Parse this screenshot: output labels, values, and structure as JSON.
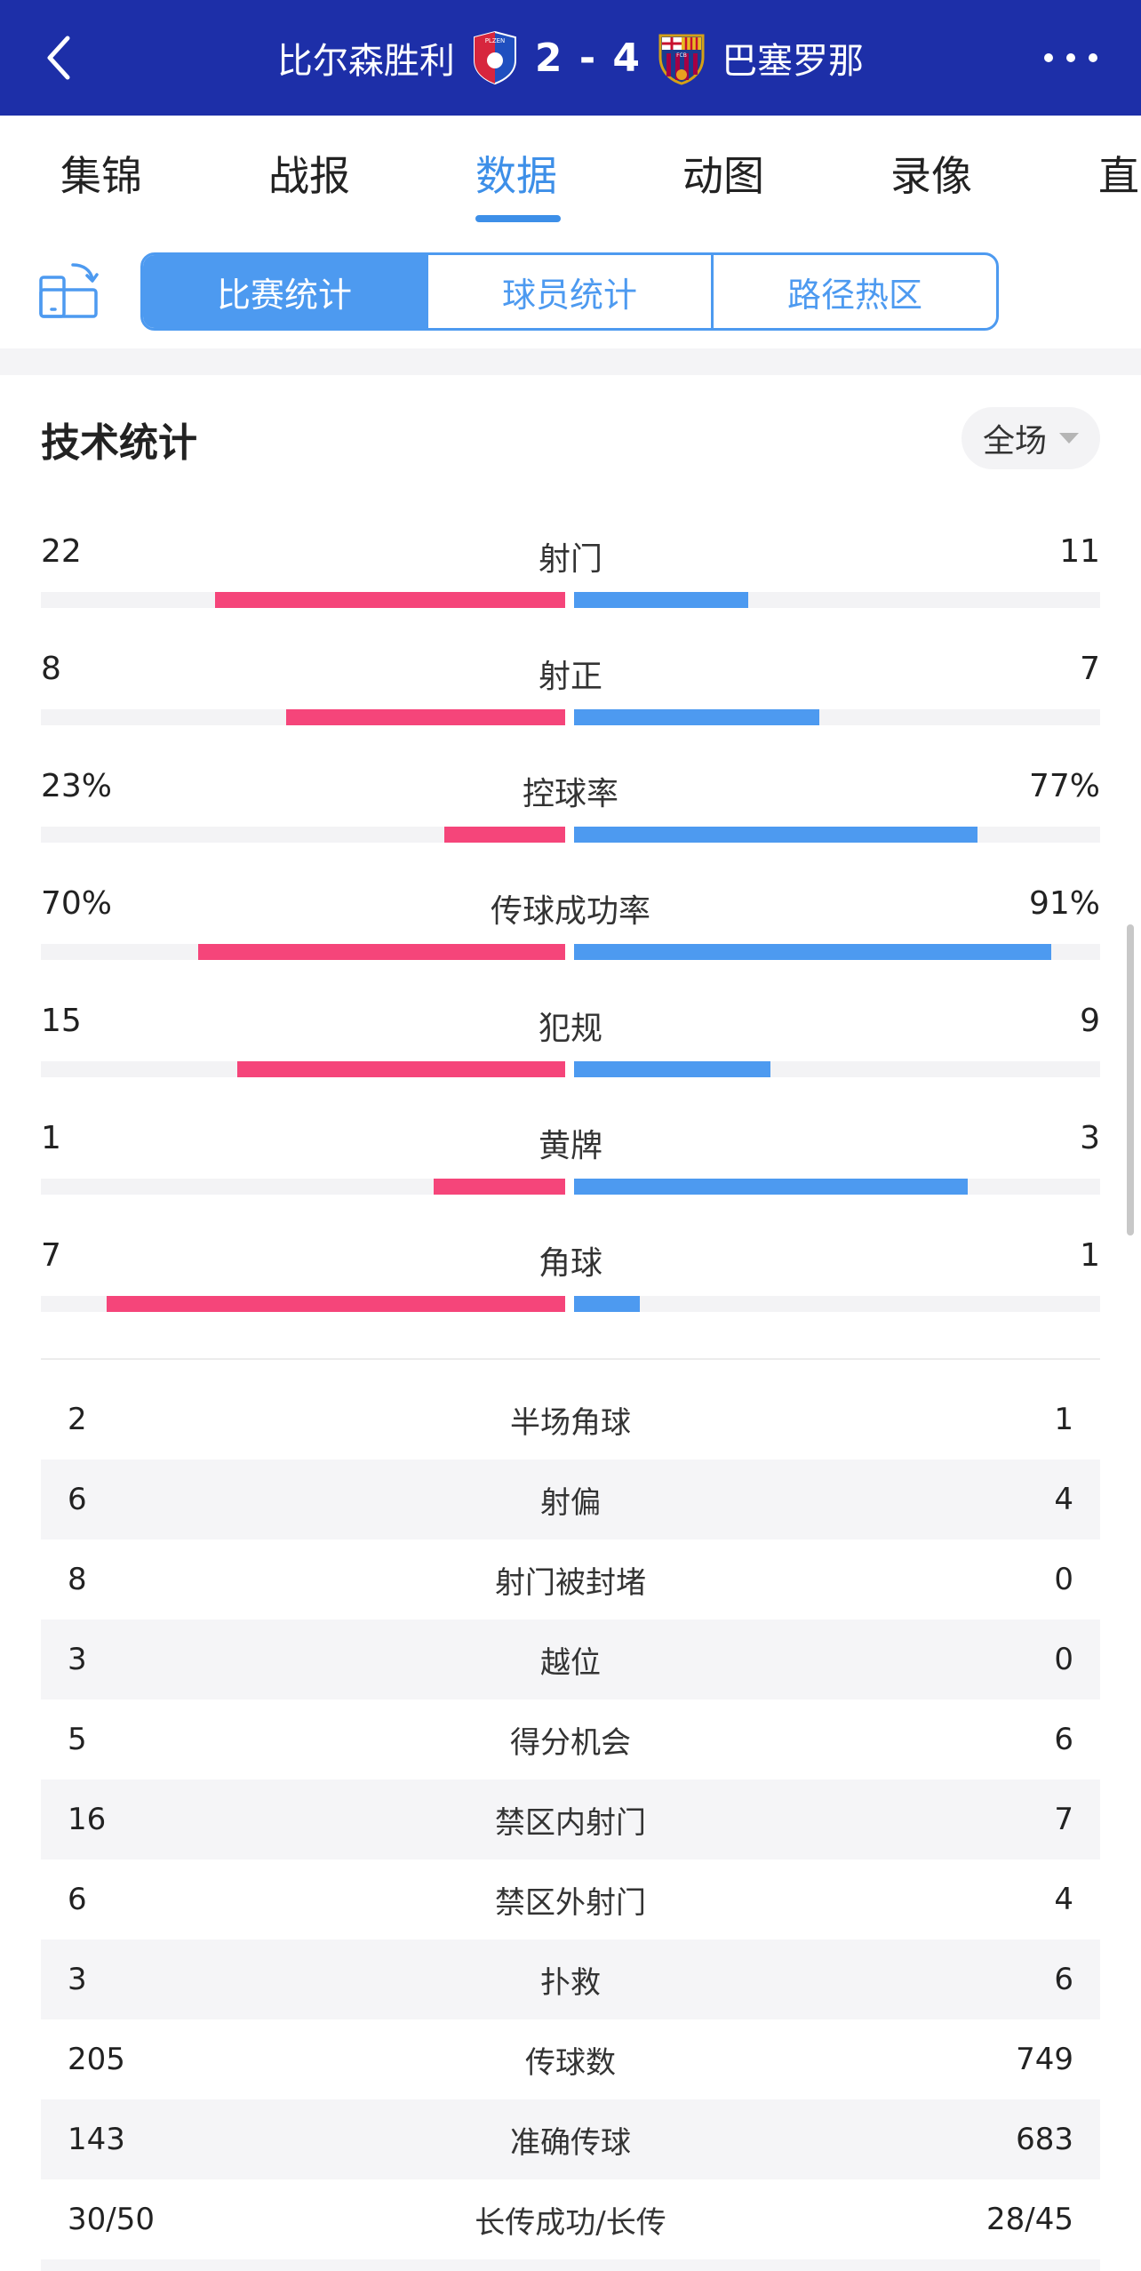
{
  "header": {
    "home_team": "比尔森胜利",
    "away_team": "巴塞罗那",
    "score": "2 - 4",
    "home_crest_text": "PLZEN",
    "away_crest_text": "FCB"
  },
  "tabs": [
    {
      "label": "集锦"
    },
    {
      "label": "战报"
    },
    {
      "label": "数据",
      "active": true
    },
    {
      "label": "动图"
    },
    {
      "label": "录像"
    },
    {
      "label": "直"
    }
  ],
  "segments": [
    {
      "label": "比赛统计",
      "active": true
    },
    {
      "label": "球员统计"
    },
    {
      "label": "路径热区"
    }
  ],
  "section": {
    "title": "技术统计",
    "period": "全场"
  },
  "colors": {
    "home": "#f5457a",
    "away": "#4d9af0",
    "header_bg": "#1d2fa8",
    "accent": "#3d8fe8"
  },
  "bar_stats": [
    {
      "name": "射门",
      "home": "22",
      "away": "11",
      "home_ratio": 0.667,
      "away_ratio": 0.333
    },
    {
      "name": "射正",
      "home": "8",
      "away": "7",
      "home_ratio": 0.533,
      "away_ratio": 0.467
    },
    {
      "name": "控球率",
      "home": "23%",
      "away": "77%",
      "home_ratio": 0.23,
      "away_ratio": 0.77
    },
    {
      "name": "传球成功率",
      "home": "70%",
      "away": "91%",
      "home_ratio": 0.7,
      "away_ratio": 0.91
    },
    {
      "name": "犯规",
      "home": "15",
      "away": "9",
      "home_ratio": 0.625,
      "away_ratio": 0.375
    },
    {
      "name": "黄牌",
      "home": "1",
      "away": "3",
      "home_ratio": 0.25,
      "away_ratio": 0.75
    },
    {
      "name": "角球",
      "home": "7",
      "away": "1",
      "home_ratio": 0.875,
      "away_ratio": 0.125
    }
  ],
  "table_stats": [
    {
      "name": "半场角球",
      "home": "2",
      "away": "1"
    },
    {
      "name": "射偏",
      "home": "6",
      "away": "4"
    },
    {
      "name": "射门被封堵",
      "home": "8",
      "away": "0"
    },
    {
      "name": "越位",
      "home": "3",
      "away": "0"
    },
    {
      "name": "得分机会",
      "home": "5",
      "away": "6"
    },
    {
      "name": "禁区内射门",
      "home": "16",
      "away": "7"
    },
    {
      "name": "禁区外射门",
      "home": "6",
      "away": "4"
    },
    {
      "name": "扑救",
      "home": "3",
      "away": "6"
    },
    {
      "name": "传球数",
      "home": "205",
      "away": "749"
    },
    {
      "name": "准确传球",
      "home": "143",
      "away": "683"
    },
    {
      "name": "长传成功/长传",
      "home": "30/50",
      "away": "28/45"
    },
    {
      "name": "",
      "home": "",
      "away": ""
    }
  ]
}
